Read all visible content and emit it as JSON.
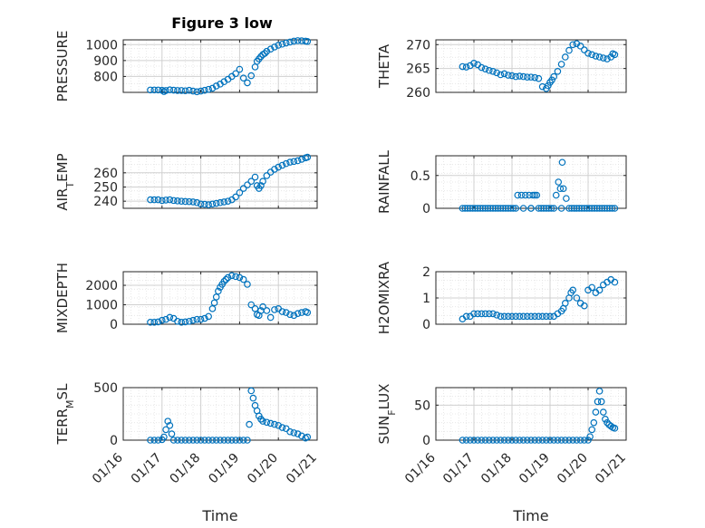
{
  "figure": {
    "title": "Figure 3 low",
    "marker_color": "#0072bd"
  },
  "chart_data": [
    {
      "type": "scatter",
      "ylabel": "PRESSURE",
      "xlabel": "",
      "ylim": [
        700,
        1030
      ],
      "yticks": [
        800,
        900,
        1000
      ],
      "ytick_labels": [
        "800",
        "900",
        "1000"
      ],
      "xlim": [
        "01/16",
        "01/21"
      ],
      "xtick_labels": [],
      "grid": true,
      "x": [
        0.7,
        0.8,
        0.9,
        1.0,
        1.05,
        1.1,
        1.2,
        1.3,
        1.4,
        1.5,
        1.6,
        1.7,
        1.8,
        1.9,
        2.0,
        2.1,
        2.2,
        2.3,
        2.4,
        2.5,
        2.6,
        2.7,
        2.8,
        2.9,
        3.0,
        3.1,
        3.2,
        3.3,
        3.4,
        3.45,
        3.5,
        3.55,
        3.6,
        3.65,
        3.7,
        3.8,
        3.9,
        4.0,
        4.1,
        4.2,
        4.3,
        4.4,
        4.5,
        4.6,
        4.7,
        4.75
      ],
      "y": [
        715,
        715,
        715,
        713,
        705,
        712,
        716,
        714,
        712,
        712,
        710,
        713,
        708,
        704,
        708,
        713,
        719,
        726,
        740,
        752,
        767,
        782,
        800,
        818,
        845,
        790,
        760,
        805,
        860,
        895,
        910,
        925,
        938,
        945,
        958,
        972,
        985,
        996,
        1003,
        1010,
        1016,
        1022,
        1025,
        1024,
        1022,
        1020
      ]
    },
    {
      "type": "scatter",
      "ylabel": "THETA",
      "xlabel": "",
      "ylim": [
        260,
        271
      ],
      "yticks": [
        260,
        265,
        270
      ],
      "ytick_labels": [
        "260",
        "265",
        "270"
      ],
      "xlim": [
        "01/16",
        "01/21"
      ],
      "xtick_labels": [],
      "grid": true,
      "x": [
        0.7,
        0.8,
        0.9,
        1.0,
        1.1,
        1.2,
        1.3,
        1.4,
        1.5,
        1.6,
        1.7,
        1.8,
        1.9,
        2.0,
        2.1,
        2.2,
        2.3,
        2.4,
        2.5,
        2.6,
        2.7,
        2.8,
        2.9,
        2.95,
        3.0,
        3.05,
        3.1,
        3.2,
        3.3,
        3.4,
        3.5,
        3.6,
        3.7,
        3.8,
        3.9,
        4.0,
        4.1,
        4.2,
        4.3,
        4.4,
        4.5,
        4.6,
        4.65,
        4.7
      ],
      "y": [
        265.4,
        265.3,
        265.6,
        266.1,
        265.8,
        265.2,
        264.9,
        264.6,
        264.4,
        264.1,
        263.7,
        263.9,
        263.6,
        263.5,
        263.3,
        263.4,
        263.3,
        263.2,
        263.2,
        263.1,
        262.9,
        261.2,
        260.8,
        261.4,
        262.1,
        262.6,
        263.3,
        264.4,
        265.9,
        267.4,
        268.8,
        270.0,
        270.2,
        269.7,
        268.9,
        268.2,
        267.9,
        267.6,
        267.4,
        267.2,
        267.0,
        267.4,
        268.1,
        267.9
      ]
    },
    {
      "type": "scatter",
      "ylabel": "AIR_TEMP",
      "xlabel": "",
      "ylim": [
        235,
        272
      ],
      "yticks": [
        240,
        250,
        260
      ],
      "ytick_labels": [
        "240",
        "250",
        "260"
      ],
      "xlim": [
        "01/16",
        "01/21"
      ],
      "xtick_labels": [],
      "grid": true,
      "x": [
        0.7,
        0.8,
        0.9,
        1.0,
        1.1,
        1.2,
        1.3,
        1.4,
        1.5,
        1.6,
        1.7,
        1.8,
        1.9,
        2.0,
        2.1,
        2.2,
        2.3,
        2.4,
        2.5,
        2.6,
        2.7,
        2.8,
        2.9,
        3.0,
        3.1,
        3.2,
        3.3,
        3.4,
        3.45,
        3.5,
        3.55,
        3.6,
        3.7,
        3.8,
        3.9,
        4.0,
        4.1,
        4.2,
        4.3,
        4.4,
        4.5,
        4.6,
        4.7,
        4.75
      ],
      "y": [
        241,
        241,
        241,
        240.5,
        240.8,
        241,
        240.5,
        240.2,
        240,
        239.8,
        239.7,
        239.5,
        239,
        238,
        237.8,
        237.5,
        238,
        238.5,
        239,
        239.5,
        240,
        241,
        243,
        246,
        249,
        251.5,
        254,
        257,
        251,
        249,
        251,
        254,
        258,
        260.5,
        262.5,
        264,
        265.3,
        266.5,
        267.5,
        268,
        268.5,
        269.5,
        270.5,
        271
      ]
    },
    {
      "type": "scatter",
      "ylabel": "RAINFALL",
      "xlabel": "",
      "ylim": [
        0,
        0.8
      ],
      "yticks": [
        0,
        0.5
      ],
      "ytick_labels": [
        "0",
        "0.5"
      ],
      "xlim": [
        "01/16",
        "01/21"
      ],
      "xtick_labels": [],
      "grid": true,
      "x": [
        0.7,
        0.9,
        1.1,
        1.3,
        1.5,
        1.7,
        1.9,
        2.1,
        2.3,
        2.5,
        2.7,
        2.9,
        3.1,
        3.3,
        3.5,
        3.7,
        3.9,
        4.1,
        4.3,
        4.5,
        4.7,
        2.15,
        2.25,
        2.35,
        2.45,
        2.55,
        2.6,
        2.65,
        3.22,
        3.27,
        3.32,
        3.35,
        2.5
      ],
      "y": [
        0,
        0,
        0,
        0,
        0,
        0,
        0,
        0,
        0,
        0,
        0,
        0,
        0,
        0,
        0,
        0,
        0,
        0,
        0,
        0,
        0,
        0.2,
        0.2,
        0.2,
        0.2,
        0.2,
        0.2,
        0.2,
        0.4,
        0.3,
        0.7,
        0.3,
        0
      ]
    },
    {
      "type": "scatter",
      "ylabel": "MIXDEPTH",
      "xlabel": "",
      "ylim": [
        0,
        2700
      ],
      "yticks": [
        0,
        1000,
        2000
      ],
      "ytick_labels": [
        "0",
        "1000",
        "2000"
      ],
      "xlim": [
        "01/16",
        "01/21"
      ],
      "xtick_labels": [],
      "grid": true,
      "x": [
        0.7,
        0.8,
        0.9,
        1.0,
        1.1,
        1.2,
        1.3,
        1.4,
        1.5,
        1.6,
        1.7,
        1.8,
        1.9,
        2.0,
        2.1,
        2.2,
        2.3,
        2.35,
        2.4,
        2.45,
        2.5,
        2.55,
        2.6,
        2.65,
        2.7,
        2.8,
        2.9,
        3.0,
        3.1,
        3.2,
        3.3,
        3.4,
        3.45,
        3.5,
        3.55,
        3.6,
        3.7,
        3.8,
        3.9,
        4.0,
        4.1,
        4.2,
        4.3,
        4.4,
        4.5,
        4.6,
        4.7,
        4.75
      ],
      "y": [
        100,
        100,
        120,
        200,
        250,
        350,
        300,
        150,
        100,
        120,
        150,
        200,
        250,
        250,
        300,
        400,
        800,
        1100,
        1400,
        1700,
        1900,
        2050,
        2200,
        2300,
        2400,
        2500,
        2450,
        2400,
        2300,
        2050,
        1000,
        800,
        500,
        450,
        700,
        900,
        700,
        350,
        750,
        800,
        650,
        600,
        500,
        450,
        550,
        600,
        650,
        600
      ]
    },
    {
      "type": "scatter",
      "ylabel": "H2OMIXRA",
      "xlabel": "",
      "ylim": [
        0,
        2
      ],
      "yticks": [
        0,
        1,
        2
      ],
      "ytick_labels": [
        "0",
        "1",
        "2"
      ],
      "xlim": [
        "01/16",
        "01/21"
      ],
      "xtick_labels": [],
      "grid": true,
      "x": [
        0.7,
        0.8,
        0.9,
        1.0,
        1.1,
        1.2,
        1.3,
        1.4,
        1.5,
        1.6,
        1.7,
        1.8,
        1.9,
        2.0,
        2.1,
        2.2,
        2.3,
        2.4,
        2.5,
        2.6,
        2.7,
        2.8,
        2.9,
        3.0,
        3.1,
        3.2,
        3.3,
        3.35,
        3.4,
        3.5,
        3.55,
        3.6,
        3.7,
        3.8,
        3.9,
        4.0,
        4.1,
        4.2,
        4.3,
        4.4,
        4.5,
        4.6,
        4.7
      ],
      "y": [
        0.2,
        0.3,
        0.3,
        0.4,
        0.4,
        0.4,
        0.4,
        0.4,
        0.4,
        0.35,
        0.3,
        0.3,
        0.3,
        0.3,
        0.3,
        0.3,
        0.3,
        0.3,
        0.3,
        0.3,
        0.3,
        0.3,
        0.3,
        0.3,
        0.3,
        0.4,
        0.5,
        0.6,
        0.8,
        1.0,
        1.2,
        1.3,
        1.0,
        0.8,
        0.7,
        1.3,
        1.4,
        1.2,
        1.3,
        1.5,
        1.6,
        1.7,
        1.6
      ]
    },
    {
      "type": "scatter",
      "ylabel": "TERR_MSL",
      "xlabel": "Time",
      "ylim": [
        0,
        500
      ],
      "yticks": [
        0,
        500
      ],
      "ytick_labels": [
        "0",
        "500"
      ],
      "xlim": [
        "01/16",
        "01/21"
      ],
      "xtick_labels": [
        "01/16",
        "01/17",
        "01/18",
        "01/19",
        "01/20",
        "01/21"
      ],
      "grid": true,
      "x": [
        0.7,
        0.8,
        0.9,
        1.0,
        1.05,
        1.1,
        1.15,
        1.2,
        1.25,
        1.3,
        1.4,
        1.5,
        1.6,
        1.7,
        1.8,
        1.9,
        2.0,
        2.1,
        2.2,
        2.3,
        2.4,
        2.5,
        2.6,
        2.7,
        2.8,
        2.9,
        3.0,
        3.1,
        3.2,
        3.25,
        3.3,
        3.35,
        3.4,
        3.45,
        3.5,
        3.55,
        3.6,
        3.7,
        3.8,
        3.9,
        4.0,
        4.1,
        4.2,
        4.3,
        4.4,
        4.5,
        4.6,
        4.7,
        4.75
      ],
      "y": [
        0,
        0,
        0,
        5,
        30,
        100,
        180,
        140,
        60,
        0,
        0,
        0,
        0,
        0,
        0,
        0,
        0,
        0,
        0,
        0,
        0,
        0,
        0,
        0,
        0,
        0,
        0,
        0,
        0,
        150,
        470,
        400,
        330,
        280,
        230,
        200,
        180,
        170,
        160,
        150,
        140,
        120,
        110,
        80,
        70,
        60,
        40,
        20,
        30
      ]
    },
    {
      "type": "scatter",
      "ylabel": "SUN_FLUX",
      "xlabel": "Time",
      "ylim": [
        0,
        75
      ],
      "yticks": [
        0,
        50
      ],
      "ytick_labels": [
        "0",
        "50"
      ],
      "xlim": [
        "01/16",
        "01/21"
      ],
      "xtick_labels": [
        "01/16",
        "01/17",
        "01/18",
        "01/19",
        "01/20",
        "01/21"
      ],
      "grid": true,
      "x": [
        0.7,
        0.8,
        0.9,
        1.0,
        1.1,
        1.2,
        1.3,
        1.4,
        1.5,
        1.6,
        1.7,
        1.8,
        1.9,
        2.0,
        2.1,
        2.2,
        2.3,
        2.4,
        2.5,
        2.6,
        2.7,
        2.8,
        2.9,
        3.0,
        3.1,
        3.2,
        3.3,
        3.4,
        3.5,
        3.6,
        3.7,
        3.8,
        3.9,
        4.0,
        4.05,
        4.1,
        4.15,
        4.2,
        4.25,
        4.3,
        4.35,
        4.4,
        4.45,
        4.5,
        4.55,
        4.6,
        4.65,
        4.7
      ],
      "y": [
        0,
        0,
        0,
        0,
        0,
        0,
        0,
        0,
        0,
        0,
        0,
        0,
        0,
        0,
        0,
        0,
        0,
        0,
        0,
        0,
        0,
        0,
        0,
        0,
        0,
        0,
        0,
        0,
        0,
        0,
        0,
        0,
        0,
        0,
        5,
        15,
        25,
        40,
        55,
        70,
        55,
        40,
        30,
        25,
        22,
        20,
        18,
        17
      ]
    }
  ]
}
